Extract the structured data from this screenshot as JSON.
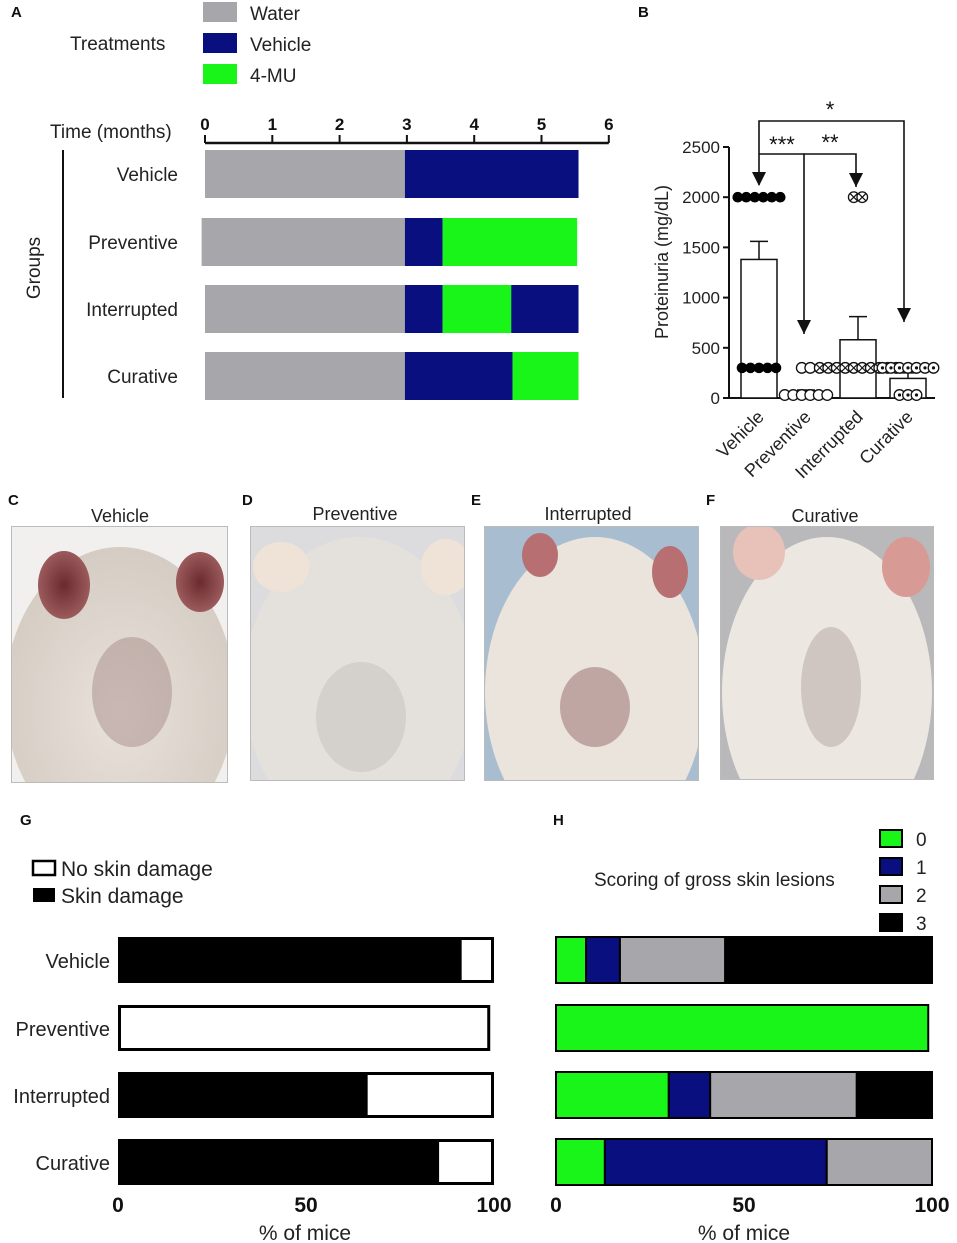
{
  "panels": {
    "a": "A",
    "b": "B",
    "c": "C",
    "d": "D",
    "e": "E",
    "f": "F",
    "g": "G",
    "h": "H"
  },
  "colors": {
    "water": "#a7a7ab",
    "vehicle": "#0a0f80",
    "mu": "#19f519",
    "black": "#000000",
    "white": "#ffffff"
  },
  "chart_data": [
    {
      "id": "A",
      "type": "bar",
      "orientation": "horizontal-stacked-timeline",
      "legend_title": "Treatments",
      "legend": [
        "Water",
        "Vehicle",
        "4-MU"
      ],
      "xlabel": "Time (months)",
      "ylabel": "Groups",
      "xticks": [
        "0",
        "1",
        "2",
        "3",
        "4",
        "5",
        "6"
      ],
      "xlim": [
        0,
        6
      ],
      "groups": [
        {
          "name": "Vehicle",
          "segments": [
            {
              "treatment": "Water",
              "start": 0,
              "end": 2.97
            },
            {
              "treatment": "Vehicle",
              "start": 2.97,
              "end": 5.55
            }
          ]
        },
        {
          "name": "Preventive",
          "segments": [
            {
              "treatment": "Water",
              "start": -0.05,
              "end": 2.97
            },
            {
              "treatment": "Vehicle",
              "start": 2.97,
              "end": 3.53
            },
            {
              "treatment": "4-MU",
              "start": 3.53,
              "end": 5.53
            }
          ]
        },
        {
          "name": "Interrupted",
          "segments": [
            {
              "treatment": "Water",
              "start": 0,
              "end": 2.97
            },
            {
              "treatment": "Vehicle",
              "start": 2.97,
              "end": 3.53
            },
            {
              "treatment": "4-MU",
              "start": 3.53,
              "end": 4.55
            },
            {
              "treatment": "Vehicle",
              "start": 4.55,
              "end": 5.55
            }
          ]
        },
        {
          "name": "Curative",
          "segments": [
            {
              "treatment": "Water",
              "start": 0,
              "end": 2.97
            },
            {
              "treatment": "Vehicle",
              "start": 2.97,
              "end": 4.57
            },
            {
              "treatment": "4-MU",
              "start": 4.57,
              "end": 5.55
            }
          ]
        }
      ]
    },
    {
      "id": "B",
      "type": "bar",
      "subtype": "bar-with-points",
      "ylabel": "Proteinuria (mg/dL)",
      "ylim": [
        0,
        2500
      ],
      "yticks": [
        "0",
        "500",
        "1000",
        "1500",
        "2000",
        "2500"
      ],
      "categories": [
        "Vehicle",
        "Preventive",
        "Interrupted",
        "Curative"
      ],
      "means": [
        1380,
        65,
        580,
        195
      ],
      "sem": [
        180,
        15,
        230,
        55
      ],
      "points": [
        {
          "category": "Vehicle",
          "marker": "filled",
          "values": [
            2000,
            2000,
            2000,
            2000,
            2000,
            2000,
            300,
            300,
            300,
            300,
            300
          ]
        },
        {
          "category": "Preventive",
          "marker": "open",
          "values": [
            300,
            300,
            30,
            30,
            30,
            30,
            30,
            30
          ]
        },
        {
          "category": "Interrupted",
          "marker": "crossed",
          "values": [
            2000,
            2000,
            300,
            300,
            300,
            300,
            300,
            300,
            300,
            300,
            300,
            300
          ]
        },
        {
          "category": "Curative",
          "marker": "open-dot",
          "values": [
            300,
            300,
            300,
            300,
            300,
            300,
            300,
            30,
            30,
            30
          ]
        }
      ],
      "significance": [
        {
          "from": "Vehicle",
          "to": "Curative",
          "label": "*"
        },
        {
          "from": "Vehicle",
          "to": "Preventive",
          "label": "***"
        },
        {
          "from": "Preventive",
          "to": "Interrupted",
          "label": "**"
        }
      ]
    },
    {
      "id": "G",
      "type": "bar",
      "orientation": "horizontal-stacked",
      "legend": [
        "No skin damage",
        "Skin damage"
      ],
      "categories": [
        "Vehicle",
        "Preventive",
        "Interrupted",
        "Curative"
      ],
      "series": [
        {
          "name": "Skin damage",
          "values": [
            91,
            0,
            66,
            85
          ]
        },
        {
          "name": "No skin damage",
          "values": [
            9,
            99,
            34,
            15
          ]
        }
      ],
      "xlabel": "% of mice",
      "xticks": [
        "0",
        "50",
        "100"
      ],
      "xlim": [
        0,
        100
      ]
    },
    {
      "id": "H",
      "type": "bar",
      "orientation": "horizontal-stacked",
      "title": "Scoring of gross skin lesions",
      "legend": [
        "0",
        "1",
        "2",
        "3"
      ],
      "categories": [
        "Vehicle",
        "Preventive",
        "Interrupted",
        "Curative"
      ],
      "series": [
        {
          "name": "0",
          "values": [
            8,
            99,
            30,
            13
          ]
        },
        {
          "name": "1",
          "values": [
            9,
            0,
            11,
            59
          ]
        },
        {
          "name": "2",
          "values": [
            28,
            0,
            39,
            28
          ]
        },
        {
          "name": "3",
          "values": [
            55,
            0,
            20,
            0
          ]
        }
      ],
      "xlabel": "% of mice",
      "xticks": [
        "0",
        "50",
        "100"
      ],
      "xlim": [
        0,
        100
      ]
    }
  ],
  "photos": [
    {
      "title": "Vehicle",
      "description": "mouse back vehicle"
    },
    {
      "title": "Preventive",
      "description": "mouse back preventive"
    },
    {
      "title": "Interrupted",
      "description": "mouse back interrupted"
    },
    {
      "title": "Curative",
      "description": "mouse back curative"
    }
  ]
}
